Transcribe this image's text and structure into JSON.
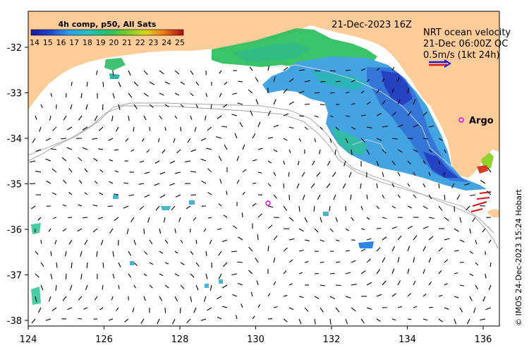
{
  "map": {
    "title": "21-Dec-2023 16Z",
    "colorbar": {
      "title": "4h comp, p50, All Sats",
      "ticks": [
        "14",
        "15",
        "16",
        "17",
        "18",
        "19",
        "20",
        "21",
        "22",
        "23",
        "24",
        "25"
      ],
      "colors": [
        "#1a1a9c",
        "#1f3fd0",
        "#2a7ae6",
        "#2aa8e0",
        "#22c2c2",
        "#22c08a",
        "#3cc04a",
        "#7ed024",
        "#c8d81c",
        "#f0a418",
        "#e85010",
        "#a81010"
      ]
    },
    "legend": {
      "lines": [
        "NRT ocean velocity",
        "21-Dec 06:00Z QC",
        "0.5m/s (1kt 24h)"
      ],
      "arrow_colors": [
        "#1a1ad8",
        "#d81a1a"
      ]
    },
    "argo_label": "Argo",
    "x_ticks": [
      "124",
      "126",
      "128",
      "130",
      "132",
      "134",
      "136"
    ],
    "y_ticks": [
      "-32",
      "-33",
      "-34",
      "-35",
      "-36",
      "-37",
      "-38"
    ],
    "credit": "© IMOS 24-Dec-2023 15:24 Hobart",
    "colors": {
      "land": "#fdcc99",
      "marker": "#e000e0",
      "contour": "#a0a0a0"
    }
  }
}
